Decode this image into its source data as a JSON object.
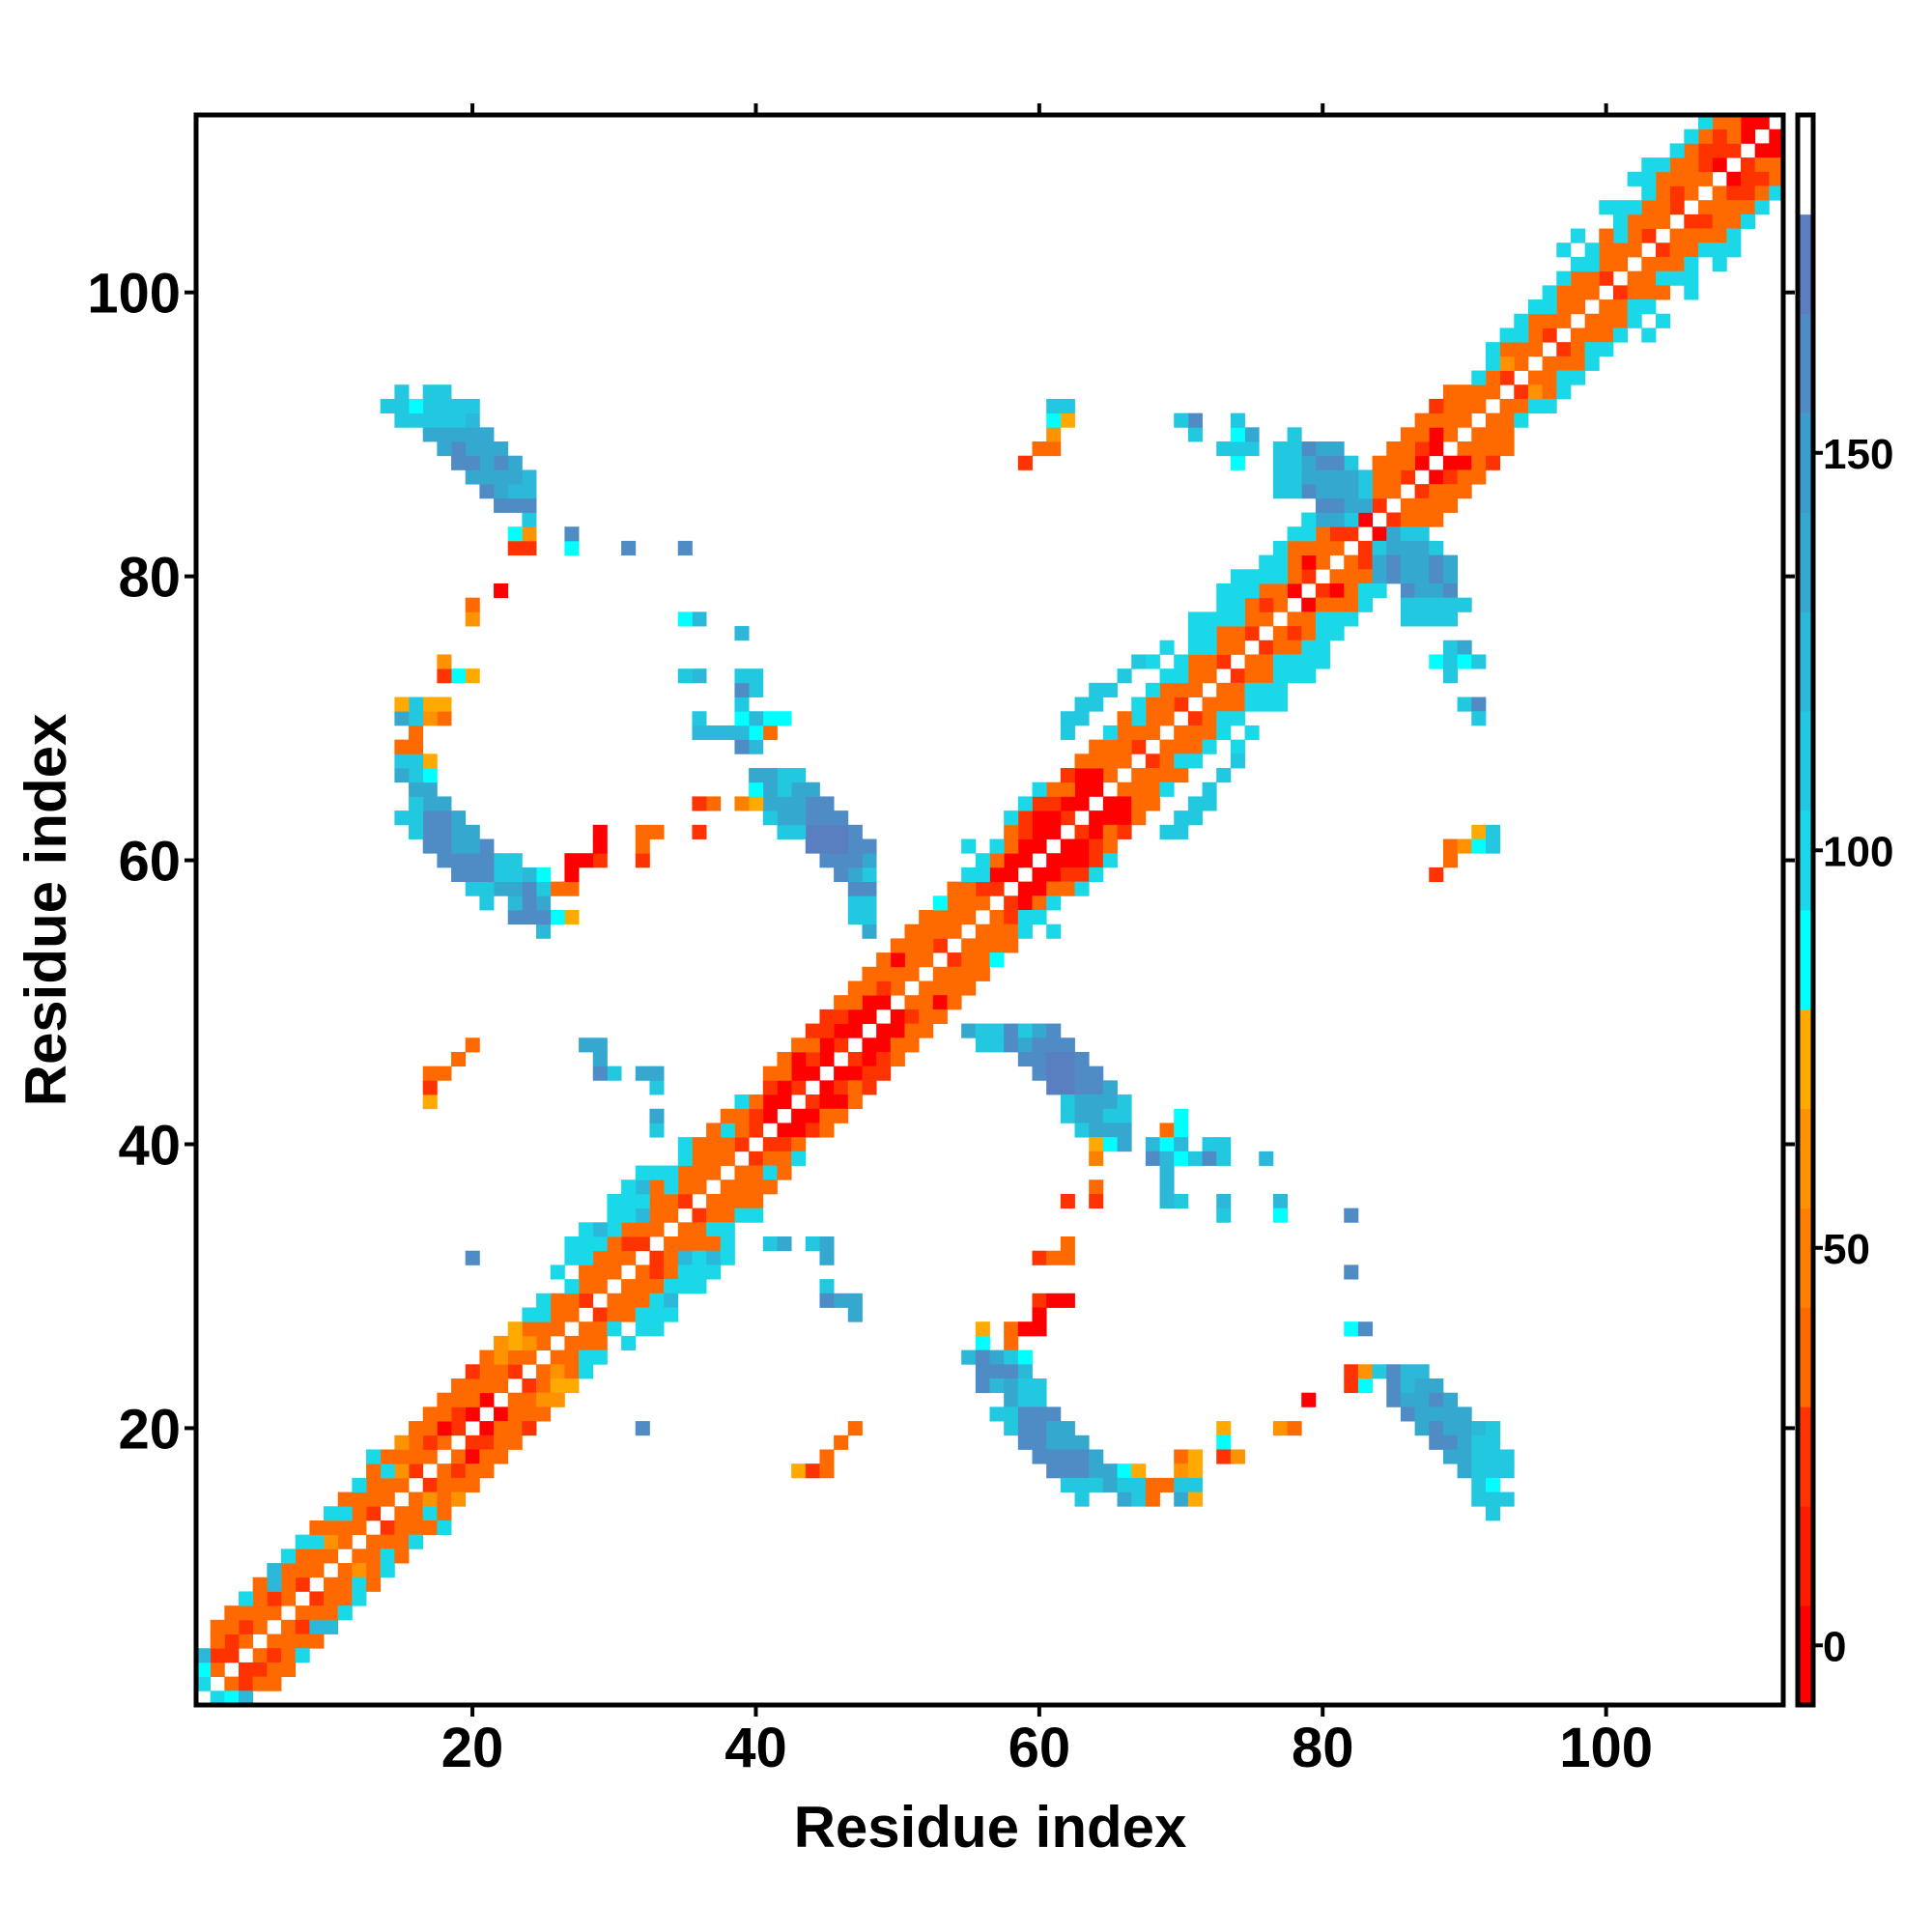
{
  "chart_data": {
    "type": "heatmap",
    "title": "",
    "xlabel": "Residue index",
    "ylabel": "Residue index",
    "n_residues": 112,
    "xlim": [
      0.5,
      112.5
    ],
    "ylim": [
      0.5,
      112.5
    ],
    "x_ticks": [
      20,
      40,
      60,
      80,
      100
    ],
    "y_ticks": [
      20,
      40,
      60,
      80,
      100
    ],
    "symmetric": true,
    "grid": false,
    "colorbar": {
      "position": "right",
      "range": [
        -7.5,
        192.5
      ],
      "bin_width": 12.5,
      "ticks": [
        0,
        50,
        100,
        150
      ],
      "bin_colors": [
        "#ff0000",
        "#ff1a00",
        "#ff3300",
        "#ff6a00",
        "#ff8000",
        "#ff9200",
        "#ffaa00",
        "#00ffff",
        "#1ad8e8",
        "#22c8e0",
        "#2cb8d8",
        "#35a8d0",
        "#3c9ccb",
        "#4f8cc5",
        "#5a7fc0",
        "#ffffff"
      ]
    },
    "value_codes": {
      "R": 0,
      "r": 12,
      "T": 25,
      "O": 37,
      "o": 50,
      "A": 62,
      "Y": 75,
      "C": 87,
      "c": 100,
      "k": 112,
      "b": 125,
      "B": 137,
      "s": 150,
      "S": 162,
      "D": 175
    },
    "band_by_offset": {
      "1": "cOTOOOOTOOOOTOOTOOTRROTOOOOTOOOTOOTOOOTTRRTRRTRRROOOTOOOTRRRRTRROOTOOTOOTOTOORTOOTRTOTRROOOOTOOTOOOTOOTOTOORTRR",
      "2": "CTTTOTOOOAOOOOAOTRTOOOOAOOOOOOTOOOOOOOOTRRRTRRRRTOOOOOOTRRRRRRRROOOOOOOOOOOTOOROTRTOOOTROOOOAOOOOOOOOOOOTOTTOR",
      "3": "bOOOObOOcOcOOcOOOOOOOAYOcOcOOOObOcOOOcOOTOROTTOOOROOOOOcOOTRTOROOOcOOcOcOcOOcOOOOOTOOOOOOOccOcOcOOcOcOOOOOTTOO",
      "4": ".OOcObccOcOcOOAOOOOTOAYcc..cccccOccOOOc.OOOTTOOOOOOOCOcccOTTOTOOcOcccccccccccOccoOOOOOOTO..ccccccccOcccOOOOOT..",
      "5": "............c............cccbccbc.c......................ccc..........cccccccccc....................c.cccccccccc",
      "6": "..........................cc.ccc......................c............cc.c.cc......................cc.c.cc.........",
      "7": ".............................................................kkkkkk.......................................",
      "8": ".............................................................kkk..........................................."
    },
    "cells": [
      [
        55,
        48,
        137
      ],
      [
        56,
        48,
        112
      ],
      [
        57,
        48,
        112
      ],
      [
        58,
        48,
        162
      ],
      [
        59,
        48,
        112
      ],
      [
        60,
        48,
        137
      ],
      [
        61,
        48,
        162
      ],
      [
        56,
        47,
        112
      ],
      [
        57,
        47,
        112
      ],
      [
        58,
        47,
        162
      ],
      [
        59,
        47,
        137
      ],
      [
        60,
        47,
        162
      ],
      [
        61,
        47,
        162
      ],
      [
        62,
        47,
        162
      ],
      [
        59,
        46,
        162
      ],
      [
        60,
        46,
        162
      ],
      [
        61,
        46,
        175
      ],
      [
        62,
        46,
        175
      ],
      [
        63,
        46,
        162
      ],
      [
        60,
        45,
        162
      ],
      [
        61,
        45,
        175
      ],
      [
        62,
        45,
        175
      ],
      [
        63,
        45,
        162
      ],
      [
        64,
        45,
        162
      ],
      [
        61,
        44,
        175
      ],
      [
        62,
        44,
        175
      ],
      [
        63,
        44,
        162
      ],
      [
        64,
        44,
        162
      ],
      [
        65,
        44,
        137
      ],
      [
        62,
        43,
        112
      ],
      [
        63,
        43,
        137
      ],
      [
        64,
        43,
        137
      ],
      [
        65,
        43,
        137
      ],
      [
        66,
        43,
        112
      ],
      [
        62,
        42,
        112
      ],
      [
        63,
        42,
        137
      ],
      [
        64,
        42,
        137
      ],
      [
        65,
        42,
        112
      ],
      [
        66,
        42,
        112
      ],
      [
        70,
        42,
        87
      ],
      [
        63,
        41,
        112
      ],
      [
        64,
        41,
        137
      ],
      [
        65,
        41,
        137
      ],
      [
        66,
        41,
        137
      ],
      [
        69,
        41,
        37
      ],
      [
        70,
        41,
        87
      ],
      [
        64,
        40,
        75
      ],
      [
        65,
        40,
        87
      ],
      [
        66,
        40,
        137
      ],
      [
        68,
        40,
        125
      ],
      [
        69,
        40,
        87
      ],
      [
        70,
        40,
        125
      ],
      [
        72,
        40,
        112
      ],
      [
        73,
        40,
        112
      ],
      [
        64,
        39,
        50
      ],
      [
        68,
        39,
        162
      ],
      [
        69,
        39,
        125
      ],
      [
        70,
        39,
        87
      ],
      [
        71,
        39,
        112
      ],
      [
        72,
        39,
        162
      ],
      [
        73,
        39,
        112
      ],
      [
        76,
        39,
        125
      ],
      [
        69,
        38,
        125
      ],
      [
        64,
        37,
        37
      ],
      [
        69,
        37,
        125
      ],
      [
        62,
        36,
        25
      ],
      [
        64,
        36,
        25
      ],
      [
        69,
        36,
        125
      ],
      [
        70,
        36,
        112
      ],
      [
        73,
        36,
        125
      ],
      [
        77,
        36,
        125
      ],
      [
        73,
        35,
        112
      ],
      [
        77,
        35,
        87
      ],
      [
        82,
        35,
        162
      ],
      [
        62,
        33,
        37
      ],
      [
        60,
        32,
        25
      ],
      [
        61,
        32,
        37
      ],
      [
        62,
        32,
        37
      ],
      [
        82,
        31,
        162
      ],
      [
        60,
        29,
        25
      ],
      [
        61,
        29,
        0
      ],
      [
        62,
        29,
        0
      ],
      [
        60,
        28,
        0
      ],
      [
        56,
        27,
        75
      ],
      [
        58,
        27,
        37
      ],
      [
        59,
        27,
        0
      ],
      [
        60,
        27,
        0
      ],
      [
        82,
        27,
        87
      ],
      [
        83,
        27,
        162
      ],
      [
        56,
        26,
        87
      ],
      [
        58,
        26,
        37
      ],
      [
        55,
        25,
        125
      ],
      [
        56,
        25,
        162
      ],
      [
        57,
        25,
        137
      ],
      [
        58,
        25,
        112
      ],
      [
        59,
        25,
        87
      ],
      [
        56,
        24,
        162
      ],
      [
        57,
        24,
        162
      ],
      [
        58,
        24,
        162
      ],
      [
        59,
        24,
        125
      ],
      [
        82,
        24,
        25
      ],
      [
        83,
        24,
        62
      ],
      [
        84,
        24,
        112
      ],
      [
        85,
        24,
        162
      ],
      [
        86,
        24,
        125
      ],
      [
        87,
        24,
        125
      ],
      [
        56,
        23,
        162
      ],
      [
        57,
        23,
        125
      ],
      [
        58,
        23,
        137
      ],
      [
        59,
        23,
        112
      ],
      [
        60,
        23,
        112
      ],
      [
        82,
        23,
        25
      ],
      [
        83,
        23,
        87
      ],
      [
        85,
        23,
        162
      ],
      [
        86,
        23,
        125
      ],
      [
        87,
        23,
        137
      ],
      [
        88,
        23,
        137
      ],
      [
        58,
        22,
        137
      ],
      [
        59,
        22,
        112
      ],
      [
        60,
        22,
        112
      ],
      [
        79,
        22,
        0
      ],
      [
        85,
        22,
        162
      ],
      [
        86,
        22,
        137
      ],
      [
        87,
        22,
        137
      ],
      [
        88,
        22,
        162
      ],
      [
        89,
        22,
        137
      ],
      [
        57,
        21,
        112
      ],
      [
        58,
        21,
        112
      ],
      [
        59,
        21,
        162
      ],
      [
        60,
        21,
        162
      ],
      [
        61,
        21,
        162
      ],
      [
        86,
        21,
        162
      ],
      [
        87,
        21,
        137
      ],
      [
        88,
        21,
        137
      ],
      [
        89,
        21,
        137
      ],
      [
        90,
        21,
        137
      ],
      [
        58,
        20,
        112
      ],
      [
        59,
        20,
        162
      ],
      [
        60,
        20,
        162
      ],
      [
        61,
        20,
        137
      ],
      [
        62,
        20,
        137
      ],
      [
        73,
        20,
        75
      ],
      [
        77,
        20,
        62
      ],
      [
        78,
        20,
        37
      ],
      [
        87,
        20,
        137
      ],
      [
        88,
        20,
        162
      ],
      [
        89,
        20,
        137
      ],
      [
        90,
        20,
        137
      ],
      [
        91,
        20,
        125
      ],
      [
        92,
        20,
        112
      ],
      [
        32,
        20,
        162
      ],
      [
        47,
        20,
        37
      ],
      [
        59,
        19,
        162
      ],
      [
        60,
        19,
        162
      ],
      [
        61,
        19,
        137
      ],
      [
        62,
        19,
        137
      ],
      [
        63,
        19,
        137
      ],
      [
        73,
        19,
        87
      ],
      [
        88,
        19,
        162
      ],
      [
        89,
        19,
        162
      ],
      [
        90,
        19,
        137
      ],
      [
        91,
        19,
        112
      ],
      [
        92,
        19,
        112
      ],
      [
        46,
        19,
        37
      ],
      [
        60,
        18,
        162
      ],
      [
        61,
        18,
        162
      ],
      [
        62,
        18,
        162
      ],
      [
        63,
        18,
        162
      ],
      [
        64,
        18,
        137
      ],
      [
        70,
        18,
        37
      ],
      [
        71,
        18,
        75
      ],
      [
        73,
        18,
        25
      ],
      [
        74,
        18,
        62
      ],
      [
        89,
        18,
        137
      ],
      [
        90,
        18,
        137
      ],
      [
        91,
        18,
        112
      ],
      [
        92,
        18,
        112
      ],
      [
        93,
        18,
        112
      ],
      [
        45,
        18,
        37
      ],
      [
        61,
        17,
        162
      ],
      [
        62,
        17,
        162
      ],
      [
        63,
        17,
        162
      ],
      [
        64,
        17,
        137
      ],
      [
        65,
        17,
        137
      ],
      [
        66,
        17,
        87
      ],
      [
        67,
        17,
        75
      ],
      [
        70,
        17,
        62
      ],
      [
        71,
        17,
        75
      ],
      [
        90,
        17,
        137
      ],
      [
        91,
        17,
        112
      ],
      [
        92,
        17,
        112
      ],
      [
        93,
        17,
        112
      ],
      [
        43,
        17,
        75
      ],
      [
        44,
        17,
        25
      ],
      [
        45,
        17,
        37
      ],
      [
        62,
        16,
        112
      ],
      [
        63,
        16,
        112
      ],
      [
        64,
        16,
        112
      ],
      [
        65,
        16,
        137
      ],
      [
        66,
        16,
        112
      ],
      [
        67,
        16,
        112
      ],
      [
        68,
        16,
        37
      ],
      [
        69,
        16,
        37
      ],
      [
        70,
        16,
        112
      ],
      [
        71,
        16,
        112
      ],
      [
        91,
        16,
        112
      ],
      [
        92,
        16,
        87
      ],
      [
        63,
        15,
        112
      ],
      [
        66,
        15,
        137
      ],
      [
        67,
        15,
        112
      ],
      [
        68,
        15,
        37
      ],
      [
        70,
        15,
        137
      ],
      [
        71,
        15,
        75
      ],
      [
        91,
        15,
        112
      ],
      [
        92,
        15,
        112
      ],
      [
        93,
        15,
        112
      ],
      [
        92,
        14,
        112
      ],
      [
        41,
        33,
        137
      ],
      [
        42,
        33,
        162
      ],
      [
        44,
        33,
        137
      ],
      [
        45,
        33,
        150
      ],
      [
        45,
        32,
        150
      ],
      [
        45,
        30,
        87
      ],
      [
        45,
        29,
        162
      ],
      [
        46,
        29,
        162
      ],
      [
        47,
        29,
        162
      ],
      [
        47,
        28,
        137
      ],
      [
        29,
        45,
        162
      ],
      [
        30,
        45,
        112
      ],
      [
        32,
        45,
        137
      ],
      [
        33,
        45,
        137
      ],
      [
        33,
        44,
        112
      ],
      [
        33,
        42,
        137
      ],
      [
        33,
        41,
        112
      ],
      [
        28,
        47,
        137
      ],
      [
        29,
        47,
        137
      ],
      [
        29,
        46,
        137
      ],
      [
        84,
        82,
        112
      ],
      [
        85,
        82,
        137
      ],
      [
        86,
        82,
        137
      ],
      [
        87,
        82,
        137
      ],
      [
        88,
        82,
        112
      ],
      [
        84,
        81,
        137
      ],
      [
        85,
        81,
        162
      ],
      [
        86,
        81,
        137
      ],
      [
        87,
        81,
        137
      ],
      [
        88,
        81,
        162
      ],
      [
        89,
        81,
        137
      ],
      [
        84,
        80,
        137
      ],
      [
        85,
        80,
        162
      ],
      [
        86,
        80,
        137
      ],
      [
        87,
        80,
        137
      ],
      [
        88,
        80,
        162
      ],
      [
        89,
        80,
        137
      ],
      [
        86,
        79,
        162
      ],
      [
        87,
        79,
        137
      ],
      [
        88,
        79,
        137
      ],
      [
        89,
        79,
        162
      ],
      [
        86,
        78,
        112
      ],
      [
        87,
        78,
        112
      ],
      [
        88,
        78,
        112
      ],
      [
        89,
        78,
        112
      ],
      [
        90,
        78,
        112
      ],
      [
        86,
        77,
        112
      ],
      [
        87,
        77,
        112
      ],
      [
        88,
        77,
        112
      ],
      [
        89,
        77,
        112
      ],
      [
        85,
        83,
        137
      ],
      [
        86,
        83,
        112
      ],
      [
        87,
        83,
        112
      ],
      [
        89,
        75,
        112
      ],
      [
        90,
        75,
        137
      ],
      [
        88,
        74,
        87
      ],
      [
        89,
        74,
        112
      ],
      [
        90,
        74,
        87
      ],
      [
        91,
        74,
        112
      ],
      [
        89,
        73,
        112
      ],
      [
        90,
        71,
        112
      ],
      [
        91,
        71,
        162
      ],
      [
        91,
        70,
        112
      ],
      [
        91,
        62,
        75
      ],
      [
        92,
        62,
        112
      ],
      [
        89,
        61,
        37
      ],
      [
        90,
        61,
        62
      ],
      [
        91,
        61,
        87
      ],
      [
        92,
        61,
        112
      ],
      [
        89,
        60,
        37
      ],
      [
        88,
        59,
        25
      ]
    ]
  }
}
